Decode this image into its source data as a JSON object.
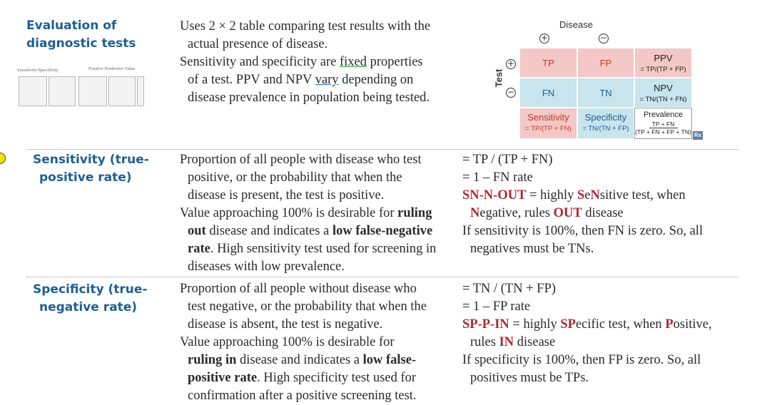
{
  "section1": {
    "heading_line1": "Evaluation of",
    "heading_line2": "diagnostic tests",
    "line1": "Uses 2 × 2 table comparing test results with the",
    "line2": "actual presence of disease.",
    "line3_a": "Sensitivity and specificity are ",
    "line3_fixed": "fixed",
    "line3_b": " properties",
    "line4_a": "of a test. PPV and NPV ",
    "line4_vary": "vary",
    "line4_b": " depending on",
    "line5": "disease prevalence in population being tested.",
    "thumb1_title": "Sensitivity/Specificity",
    "thumb2_title": "Positive Predictive Value"
  },
  "table": {
    "disease_label": "Disease",
    "plus": "+",
    "minus": "−",
    "test_label": "Test",
    "tp": "TP",
    "fp": "FP",
    "fn": "FN",
    "tn": "TN",
    "ppv": "PPV",
    "ppv_formula": "= TP/(TP + FP)",
    "npv": "NPV",
    "npv_formula": "= TN/(TN + FN)",
    "sensitivity": "Sensitivity",
    "sensitivity_formula": "= TP/(TP + FN)",
    "specificity": "Specificity",
    "specificity_formula": "= TN/(TN + FP)",
    "prevalence": "Prevalence",
    "prevalence_num": "TP + FN",
    "prevalence_den": "(TP + FN + FP + TN)",
    "rx": "Rx"
  },
  "sensitivity": {
    "heading_line1": "Sensitivity (true-",
    "heading_line2": "positive rate)",
    "d1": "Proportion of all people with disease who test",
    "d2": "positive, or the probability that when the",
    "d3": "disease is present, the test is positive.",
    "d4_a": "Value approaching 100% is desirable for ",
    "d4_b": "ruling",
    "d5_a": "out",
    "d5_b": " disease and indicates a ",
    "d5_c": "low false-negative",
    "d6_a": "rate",
    "d6_b": ". High sensitivity test used for screening in",
    "d7": "diseases with low prevalence.",
    "f1": "= TP / (TP + FN)",
    "f2": "= 1 – FN rate",
    "f3_a": "SN-N-OUT",
    "f3_b": " = highly ",
    "f3_c": "S",
    "f3_d": "e",
    "f3_e": "N",
    "f3_f": "sitive test, when",
    "f4_a": "N",
    "f4_b": "egative, rules ",
    "f4_c": "OUT",
    "f4_d": " disease",
    "f5": "If sensitivity is 100%, then FN is zero. So, all",
    "f6": "negatives must be TNs."
  },
  "specificity": {
    "heading_line1": "Specificity (true-",
    "heading_line2": "negative rate)",
    "d1": "Proportion of all people without disease who",
    "d2": "test negative, or the probability that when the",
    "d3": "disease is absent, the test is negative.",
    "d4": "Value approaching 100% is desirable for",
    "d5_a": "ruling in",
    "d5_b": " disease and indicates a ",
    "d5_c": "low false-",
    "d6_a": "positive rate",
    "d6_b": ". High specificity test used for",
    "d7": "confirmation after a positive screening test.",
    "f1": "= TN / (TN + FP)",
    "f2": "= 1 – FP rate",
    "f3_a": "SP-P-IN",
    "f3_b": " = highly ",
    "f3_c": "SP",
    "f3_d": "ecific test, when ",
    "f3_e": "P",
    "f3_f": "ositive,",
    "f4_a": "rules ",
    "f4_b": "IN",
    "f4_c": " disease",
    "f5": "If specificity is 100%, then FP is zero. So, all",
    "f6": "positives must be TPs."
  },
  "colors": {
    "heading": "#1d5f93",
    "emphasis_red": "#b0262d",
    "cell_pink": "#f3c8c7",
    "cell_blue": "#c8e4ed",
    "margin_marker": "#f2e600"
  }
}
